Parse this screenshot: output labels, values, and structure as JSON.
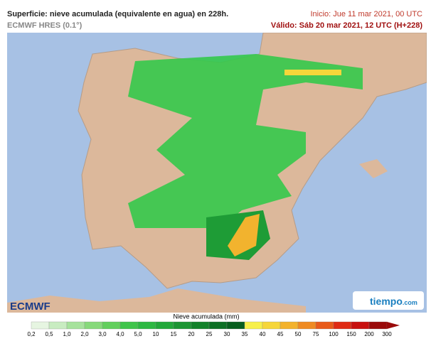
{
  "header": {
    "title": "Superficie: nieve acumulada (equivalente en agua) en 228h.",
    "model": "ECMWF HRES (0.1°)",
    "init": "Inicio: Jue 11 mar 2021, 00 UTC",
    "valid": "Válido: Sáb 20 mar 2021, 12 UTC (H+228)"
  },
  "logos": {
    "left": "ECMWF",
    "right": "tiempo",
    "right_suffix": ".com"
  },
  "legend": {
    "title": "Nieve acumulada (mm)",
    "ticks": [
      "0,2",
      "0,5",
      "1,0",
      "2,0",
      "3,0",
      "4,0",
      "5,0",
      "10",
      "15",
      "20",
      "25",
      "30",
      "35",
      "40",
      "45",
      "50",
      "75",
      "100",
      "150",
      "200",
      "300"
    ],
    "colors": [
      "#e6f5e1",
      "#c8ecc1",
      "#a6e29c",
      "#86d97a",
      "#62cf5c",
      "#3fc44a",
      "#2db842",
      "#22a83a",
      "#1b9533",
      "#13822b",
      "#0d7025",
      "#075e1e",
      "#f7f04a",
      "#f6d63a",
      "#f3b22c",
      "#ef8a22",
      "#e85a1a",
      "#df2a14",
      "#c8100f",
      "#9a0a0a"
    ]
  }
}
